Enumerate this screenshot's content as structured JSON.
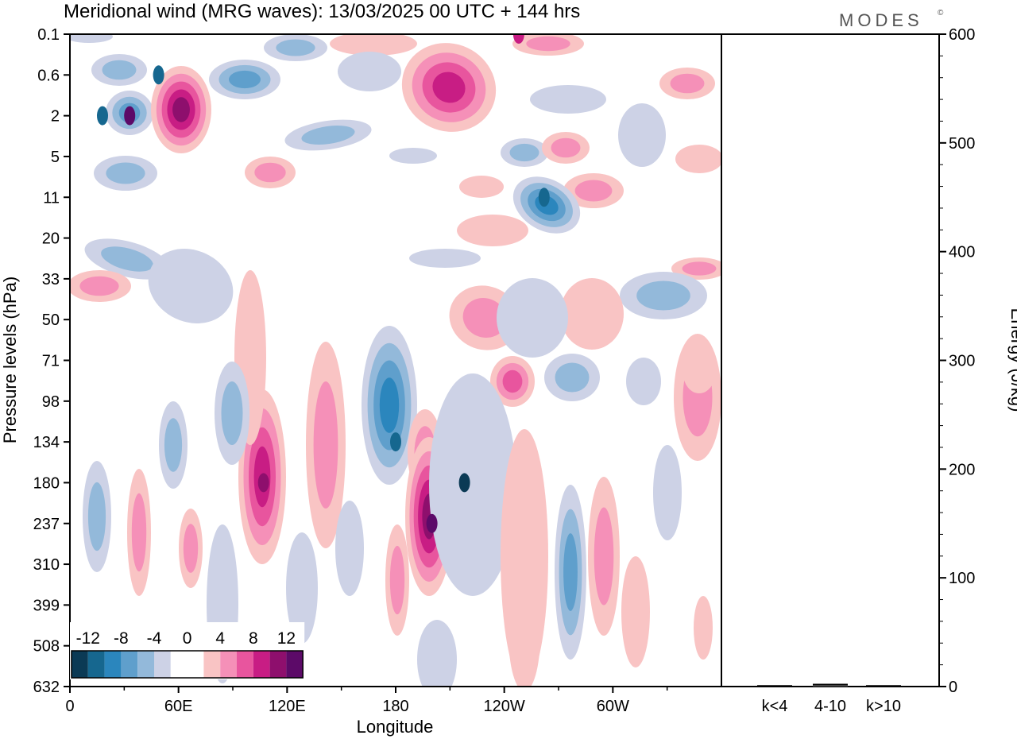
{
  "title": "Meridional wind (MRG waves):  13/03/2025  00 UTC  + 144 hrs",
  "brand": "MODES",
  "brand_mark": "©",
  "chart_data": [
    {
      "type": "heatmap",
      "variable": "Meridional wind (MRG waves)",
      "xlabel": "Longitude",
      "ylabel": "Pressure levels (hPa)",
      "x_ticks": [
        "0",
        "60E",
        "120E",
        "180",
        "120W",
        "60W"
      ],
      "y_ticks": [
        "0.1",
        "0.6",
        "2",
        "5",
        "11",
        "20",
        "33",
        "50",
        "71",
        "98",
        "134",
        "180",
        "237",
        "310",
        "399",
        "508",
        "632"
      ],
      "colorbar": {
        "tick_labels": [
          "-12",
          "-8",
          "-4",
          "0",
          "4",
          "8",
          "12"
        ],
        "colors": [
          "#0b3a55",
          "#16678f",
          "#2b86bd",
          "#5f9fcc",
          "#93b9da",
          "#cdd2e6",
          "#ffffff",
          "#ffffff",
          "#f9c4c4",
          "#f590b8",
          "#e8559e",
          "#c81d84",
          "#8e0f6d",
          "#5c0a68"
        ]
      },
      "features": [
        {
          "kind": "positive",
          "lon": 33,
          "level": "2",
          "peak": 11
        },
        {
          "kind": "negative",
          "lon": 49,
          "level": "0.6",
          "peak": -9
        },
        {
          "kind": "negative",
          "lon": 18,
          "level": "2",
          "peak": -9
        },
        {
          "kind": "positive",
          "lon": 107,
          "level": "180",
          "peak": 9
        },
        {
          "kind": "negative",
          "lon": 180,
          "level": "134",
          "peak": -10
        },
        {
          "kind": "positive",
          "lon": 200,
          "level": "237",
          "peak": 11
        },
        {
          "kind": "negative",
          "lon": 218,
          "level": "180",
          "peak": -12
        },
        {
          "kind": "negative",
          "lon": 262,
          "level": "11",
          "peak": -10
        },
        {
          "kind": "positive",
          "lon": 213,
          "level": "1",
          "peak": 8
        },
        {
          "kind": "positive",
          "lon": 248,
          "level": "0.1",
          "peak": 7
        }
      ]
    },
    {
      "type": "bar",
      "ylabel": "Energy (J/kg)",
      "categories": [
        "k<4",
        "4-10",
        "k>10"
      ],
      "values": [
        0,
        2,
        0
      ],
      "ylim": [
        0,
        600
      ],
      "y_ticks": [
        "0",
        "100",
        "200",
        "300",
        "400",
        "500",
        "600"
      ]
    }
  ]
}
